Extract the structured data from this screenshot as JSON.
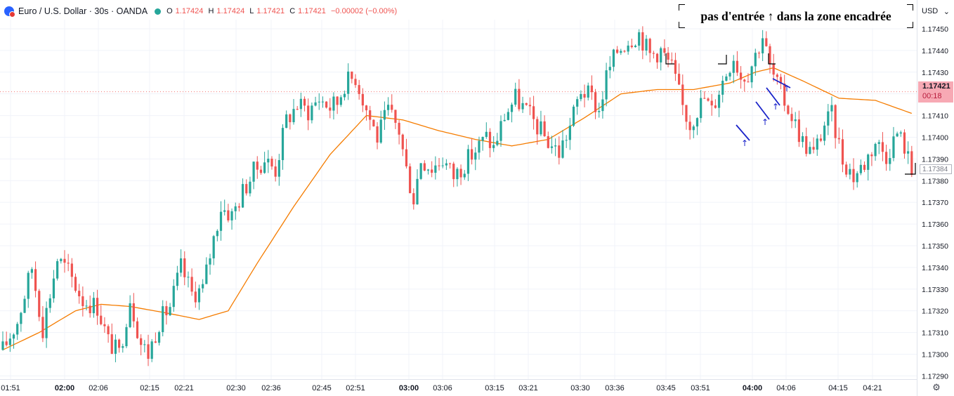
{
  "header": {
    "symbol_icon": "eurusd-flag-icon",
    "title": "Euro / U.S. Dollar · 30s · OANDA",
    "status_icon": "market-open-dot-icon",
    "ohlc": {
      "o_label": "O",
      "o": "1.17424",
      "h_label": "H",
      "h": "1.17424",
      "l_label": "L",
      "l": "1.17421",
      "c_label": "C",
      "c": "1.17421",
      "change": "−0.00002 (−0.00%)"
    }
  },
  "annotation": {
    "text": "pas d'entrée ↑ dans la zone encadrée"
  },
  "price_scale": {
    "currency": "USD",
    "current_price": "1.17421",
    "countdown": "00:18",
    "prev_price": "1.17384",
    "settings_icon": "settings-gear-icon"
  },
  "colors": {
    "up": "#26a69a",
    "down": "#ef5350",
    "ma": "#f57c00",
    "annotation_arrows": "#1a23c9",
    "grid": "#f0f3fa"
  },
  "chart_data": {
    "type": "candlestick",
    "ylim": [
      1.172885,
      1.174542
    ],
    "y_ticks": [
      "1.17290",
      "1.17300",
      "1.17310",
      "1.17320",
      "1.17330",
      "1.17340",
      "1.17350",
      "1.17360",
      "1.17370",
      "1.17380",
      "1.17390",
      "1.17400",
      "1.17410",
      "1.17420",
      "1.17430",
      "1.17440",
      "1.17450"
    ],
    "x_ticks": [
      {
        "label": "01:51",
        "bold": false
      },
      {
        "label": "02:00",
        "bold": true
      },
      {
        "label": "02:06",
        "bold": false
      },
      {
        "label": "02:15",
        "bold": false
      },
      {
        "label": "02:21",
        "bold": false
      },
      {
        "label": "02:30",
        "bold": false
      },
      {
        "label": "02:36",
        "bold": false
      },
      {
        "label": "02:45",
        "bold": false
      },
      {
        "label": "02:51",
        "bold": false
      },
      {
        "label": "03:00",
        "bold": true
      },
      {
        "label": "03:06",
        "bold": false
      },
      {
        "label": "03:15",
        "bold": false
      },
      {
        "label": "03:21",
        "bold": false
      },
      {
        "label": "03:30",
        "bold": false
      },
      {
        "label": "03:36",
        "bold": false
      },
      {
        "label": "03:45",
        "bold": false
      },
      {
        "label": "03:51",
        "bold": false
      },
      {
        "label": "04:00",
        "bold": true
      },
      {
        "label": "04:06",
        "bold": false
      },
      {
        "label": "04:15",
        "bold": false
      },
      {
        "label": "04:21",
        "bold": false
      }
    ],
    "close_path": [
      [
        0,
        1.17302
      ],
      [
        4,
        1.17315
      ],
      [
        8,
        1.1734
      ],
      [
        11,
        1.17312
      ],
      [
        15,
        1.17344
      ],
      [
        18,
        1.17338
      ],
      [
        22,
        1.17325
      ],
      [
        26,
        1.17322
      ],
      [
        29,
        1.17306
      ],
      [
        32,
        1.173
      ],
      [
        35,
        1.17326
      ],
      [
        38,
        1.17305
      ],
      [
        40,
        1.173
      ],
      [
        43,
        1.17315
      ],
      [
        46,
        1.17322
      ],
      [
        49,
        1.1734
      ],
      [
        52,
        1.17328
      ],
      [
        55,
        1.1733
      ],
      [
        57,
        1.17346
      ],
      [
        60,
        1.17368
      ],
      [
        63,
        1.17364
      ],
      [
        66,
        1.17375
      ],
      [
        69,
        1.17384
      ],
      [
        72,
        1.1739
      ],
      [
        75,
        1.17385
      ],
      [
        78,
        1.17408
      ],
      [
        81,
        1.17415
      ],
      [
        84,
        1.17412
      ],
      [
        87,
        1.17418
      ],
      [
        90,
        1.17414
      ],
      [
        92,
        1.17416
      ],
      [
        94,
        1.17425
      ],
      [
        97,
        1.17428
      ],
      [
        100,
        1.17413
      ],
      [
        103,
        1.174
      ],
      [
        106,
        1.17412
      ],
      [
        109,
        1.17403
      ],
      [
        111,
        1.17385
      ],
      [
        113,
        1.17372
      ],
      [
        115,
        1.1739
      ],
      [
        118,
        1.17386
      ],
      [
        121,
        1.1739
      ],
      [
        124,
        1.17382
      ],
      [
        127,
        1.17388
      ],
      [
        130,
        1.17394
      ],
      [
        133,
        1.174
      ],
      [
        135,
        1.17395
      ],
      [
        138,
        1.1741
      ],
      [
        141,
        1.17418
      ],
      [
        144,
        1.17412
      ],
      [
        147,
        1.17405
      ],
      [
        150,
        1.17398
      ],
      [
        153,
        1.17393
      ],
      [
        156,
        1.17405
      ],
      [
        159,
        1.17422
      ],
      [
        162,
        1.17418
      ],
      [
        164,
        1.17412
      ],
      [
        166,
        1.17428
      ],
      [
        169,
        1.1744
      ],
      [
        172,
        1.17445
      ],
      [
        175,
        1.17448
      ],
      [
        178,
        1.17438
      ],
      [
        181,
        1.1744
      ],
      [
        184,
        1.17432
      ],
      [
        187,
        1.17414
      ],
      [
        189,
        1.17406
      ],
      [
        191,
        1.17413
      ],
      [
        193,
        1.17418
      ],
      [
        195,
        1.17412
      ],
      [
        197,
        1.17422
      ],
      [
        199,
        1.1743
      ],
      [
        201,
        1.17438
      ],
      [
        203,
        1.17428
      ],
      [
        205,
        1.1743
      ],
      [
        207,
        1.17438
      ],
      [
        209,
        1.17447
      ],
      [
        211,
        1.17432
      ],
      [
        214,
        1.1742
      ],
      [
        217,
        1.1741
      ],
      [
        220,
        1.17398
      ],
      [
        223,
        1.17392
      ],
      [
        226,
        1.17406
      ],
      [
        228,
        1.1741
      ],
      [
        231,
        1.1739
      ],
      [
        234,
        1.17382
      ],
      [
        237,
        1.17388
      ],
      [
        240,
        1.17398
      ],
      [
        243,
        1.17392
      ],
      [
        246,
        1.17402
      ],
      [
        248,
        1.17396
      ],
      [
        250,
        1.17384
      ]
    ],
    "moving_average": [
      [
        0,
        1.17302
      ],
      [
        10,
        1.1731
      ],
      [
        20,
        1.1732
      ],
      [
        27,
        1.17323
      ],
      [
        35,
        1.17322
      ],
      [
        45,
        1.17319
      ],
      [
        54,
        1.17316
      ],
      [
        62,
        1.1732
      ],
      [
        70,
        1.17342
      ],
      [
        80,
        1.17368
      ],
      [
        90,
        1.17392
      ],
      [
        100,
        1.1741
      ],
      [
        110,
        1.17408
      ],
      [
        120,
        1.17403
      ],
      [
        130,
        1.17399
      ],
      [
        140,
        1.17396
      ],
      [
        150,
        1.17399
      ],
      [
        160,
        1.17409
      ],
      [
        170,
        1.1742
      ],
      [
        180,
        1.17422
      ],
      [
        190,
        1.17422
      ],
      [
        200,
        1.17425
      ],
      [
        207,
        1.1743
      ],
      [
        212,
        1.17432
      ],
      [
        220,
        1.17426
      ],
      [
        230,
        1.17418
      ],
      [
        240,
        1.17417
      ],
      [
        250,
        1.17411
      ]
    ],
    "current_price": 1.17421,
    "prev_price": 1.17384
  }
}
